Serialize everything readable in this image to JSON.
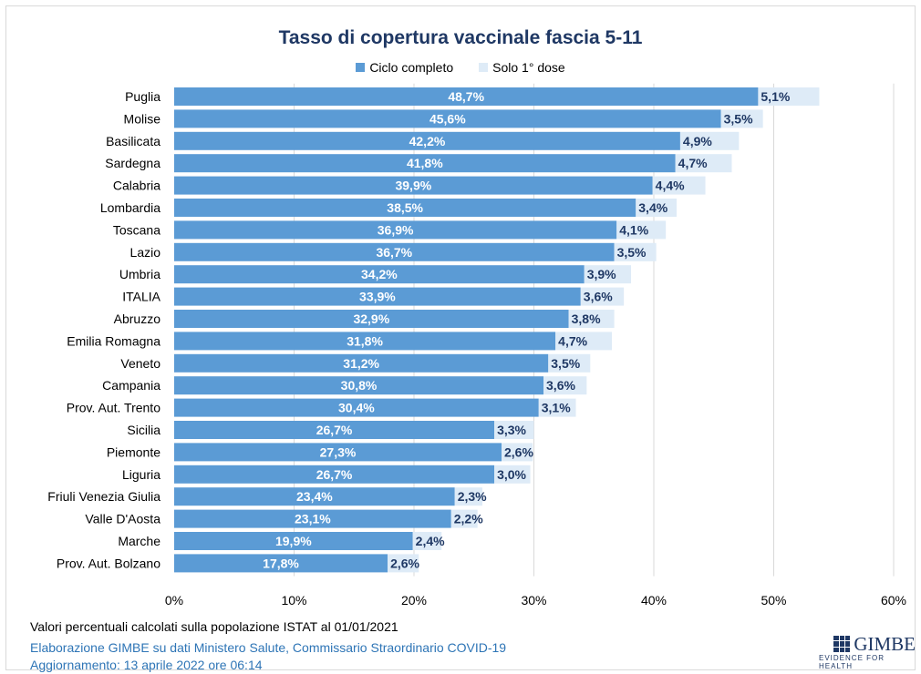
{
  "chart_data": {
    "type": "bar",
    "orientation": "horizontal",
    "stacked": true,
    "title": "Tasso di copertura vaccinale fascia 5-11",
    "xlim": [
      0,
      60
    ],
    "x_ticks": [
      "0%",
      "10%",
      "20%",
      "30%",
      "40%",
      "50%",
      "60%"
    ],
    "grid": true,
    "legend_position": "top",
    "categories": [
      "Puglia",
      "Molise",
      "Basilicata",
      "Sardegna",
      "Calabria",
      "Lombardia",
      "Toscana",
      "Lazio",
      "Umbria",
      "ITALIA",
      "Abruzzo",
      "Emilia Romagna",
      "Veneto",
      "Campania",
      "Prov. Aut. Trento",
      "Sicilia",
      "Piemonte",
      "Liguria",
      "Friuli Venezia Giulia",
      "Valle D'Aosta",
      "Marche",
      "Prov. Aut. Bolzano"
    ],
    "series": [
      {
        "name": "Ciclo completo",
        "color": "#5b9bd5",
        "values": [
          48.7,
          45.6,
          42.2,
          41.8,
          39.9,
          38.5,
          36.9,
          36.7,
          34.2,
          33.9,
          32.9,
          31.8,
          31.2,
          30.8,
          30.4,
          26.7,
          27.3,
          26.7,
          23.4,
          23.1,
          19.9,
          17.8
        ],
        "labels": [
          "48,7%",
          "45,6%",
          "42,2%",
          "41,8%",
          "39,9%",
          "38,5%",
          "36,9%",
          "36,7%",
          "34,2%",
          "33,9%",
          "32,9%",
          "31,8%",
          "31,2%",
          "30,8%",
          "30,4%",
          "26,7%",
          "27,3%",
          "26,7%",
          "23,4%",
          "23,1%",
          "19,9%",
          "17,8%"
        ]
      },
      {
        "name": "Solo 1° dose",
        "color": "#deebf7",
        "values": [
          5.1,
          3.5,
          4.9,
          4.7,
          4.4,
          3.4,
          4.1,
          3.5,
          3.9,
          3.6,
          3.8,
          4.7,
          3.5,
          3.6,
          3.1,
          3.3,
          2.6,
          3.0,
          2.3,
          2.2,
          2.4,
          2.6
        ],
        "labels": [
          "5,1%",
          "3,5%",
          "4,9%",
          "4,7%",
          "4,4%",
          "3,4%",
          "4,1%",
          "3,5%",
          "3,9%",
          "3,6%",
          "3,8%",
          "4,7%",
          "3,5%",
          "3,6%",
          "3,1%",
          "3,3%",
          "2,6%",
          "3,0%",
          "2,3%",
          "2,2%",
          "2,4%",
          "2,6%"
        ]
      }
    ]
  },
  "footer": {
    "note": "Valori percentuali calcolati sulla popolazione ISTAT al 01/01/2021",
    "source": "Elaborazione GIMBE su dati Ministero Salute, Commissario Straordinario COVID-19",
    "update": "Aggiornamento: 13 aprile 2022 ore 06:14"
  },
  "logo": {
    "name": "GIMBE",
    "tagline": "EVIDENCE FOR HEALTH"
  }
}
